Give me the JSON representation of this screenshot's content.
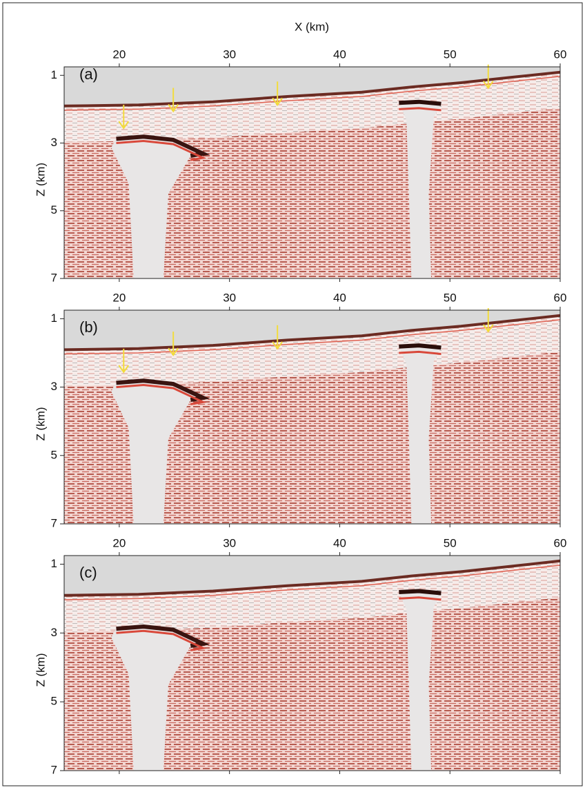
{
  "figure": {
    "x_label": "X (km)",
    "y_label": "Z (km)",
    "xlim": [
      15,
      60
    ],
    "ylim": [
      0.75,
      7
    ],
    "xticks": [
      20,
      30,
      40,
      50,
      60
    ],
    "yticks": [
      1,
      3,
      5,
      7
    ],
    "panels": [
      {
        "label": "(a)",
        "arrows": true
      },
      {
        "label": "(b)",
        "arrows": true
      },
      {
        "label": "(c)",
        "arrows": false
      }
    ]
  }
}
